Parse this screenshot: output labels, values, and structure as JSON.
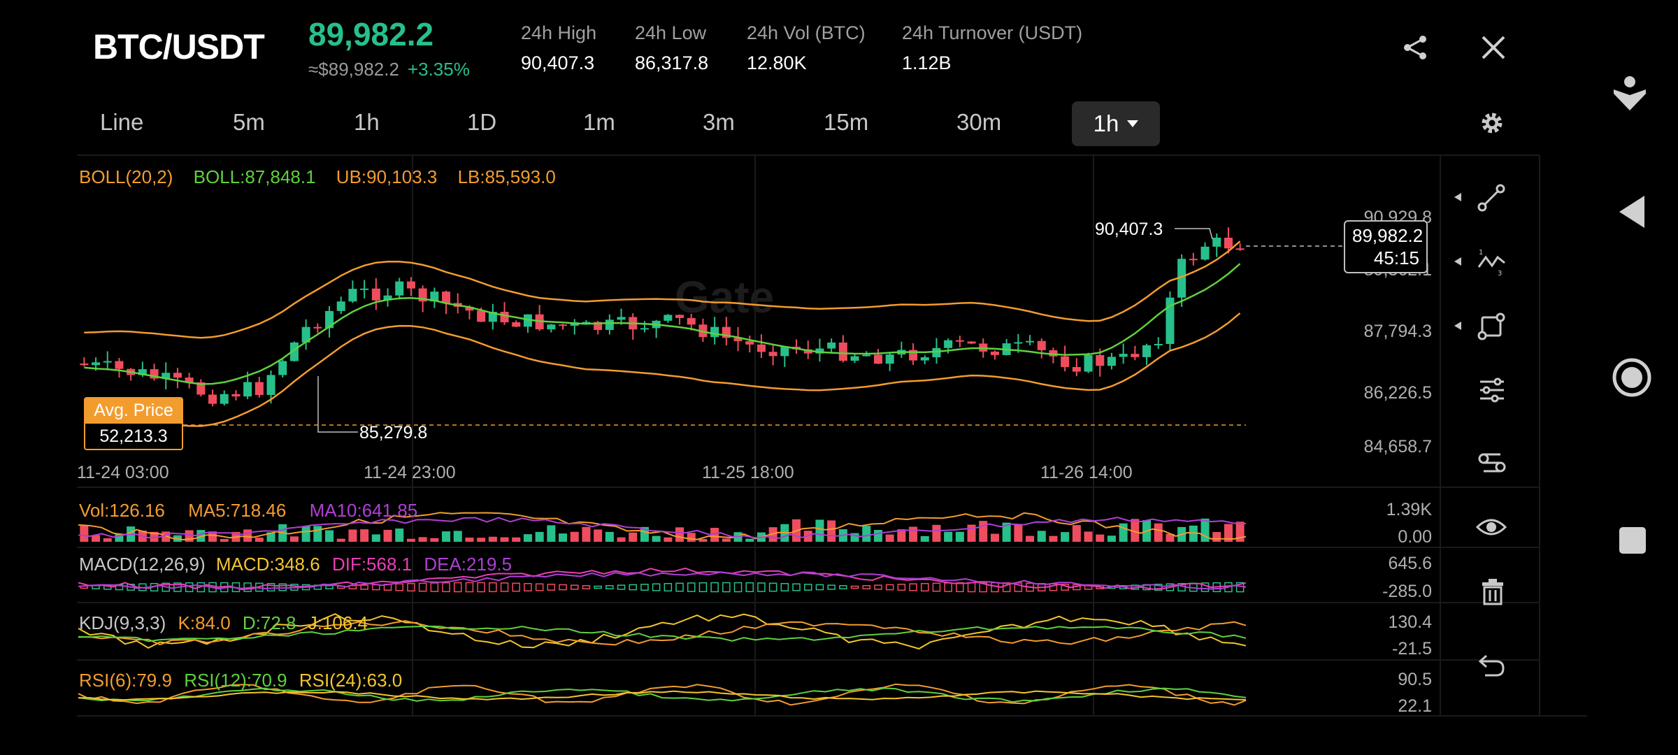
{
  "header": {
    "pair": "BTC/USDT",
    "price": "89,982.2",
    "approx_price": "≈$89,982.2",
    "change": "+3.35%",
    "stats": [
      {
        "label": "24h High",
        "value": "90,407.3"
      },
      {
        "label": "24h Low",
        "value": "86,317.8"
      },
      {
        "label": "24h Vol (BTC)",
        "value": "12.80K"
      },
      {
        "label": "24h Turnover (USDT)",
        "value": "1.12B"
      }
    ]
  },
  "tabs": [
    "Line",
    "5m",
    "1h",
    "1D",
    "1m",
    "3m",
    "15m",
    "30m"
  ],
  "active_tab": "1h",
  "boll": {
    "label": "BOLL(20,2)",
    "mid": "BOLL:87,848.1",
    "ub": "UB:90,103.3",
    "lb": "LB:85,593.0"
  },
  "watermark": "Gate",
  "price_axis": [
    "90,929.8",
    "89,362.1",
    "87,794.3",
    "86,226.5",
    "84,658.7"
  ],
  "time_axis": [
    "11-24 03:00",
    "11-24 23:00",
    "11-25 18:00",
    "11-26 14:00"
  ],
  "high_marker": "90,407.3",
  "low_marker": "85,279.8",
  "last_price_tag": {
    "price": "89,982.2",
    "countdown": "45:15"
  },
  "avg_price": {
    "label": "Avg. Price",
    "value": "52,213.3"
  },
  "volume": {
    "vol": "Vol:126.16",
    "ma5": "MA5:718.46",
    "ma10": "MA10:641.85",
    "axis_top": "1.39K",
    "axis_bottom": "0.00"
  },
  "macd": {
    "label": "MACD(12,26,9)",
    "macd": "MACD:348.6",
    "dif": "DIF:568.1",
    "dea": "DEA:219.5",
    "axis_top": "645.6",
    "axis_bottom": "-285.0"
  },
  "kdj": {
    "label": "KDJ(9,3,3)",
    "k": "K:84.0",
    "d": "D:72.8",
    "j": "J:106.4",
    "axis_top": "130.4",
    "axis_bottom": "-21.5"
  },
  "rsi": {
    "label": "RSI(6):79.9",
    "rsi12": "RSI(12):70.9",
    "rsi24": "RSI(24):63.0",
    "axis_top": "90.5",
    "axis_bottom": "22.1"
  },
  "colors": {
    "up": "#27c08a",
    "down": "#ef4d5e",
    "boll_mid": "#5fd13f",
    "boll_band": "#f39c2e",
    "ma10": "#b03fd6",
    "dif": "#e83fb5",
    "dea": "#b03fd6"
  },
  "toolbar_icons": [
    "trend-line-icon",
    "fib-tool-icon",
    "shape-tool-icon",
    "indicator-settings-icon",
    "layout-icon",
    "visibility-icon",
    "delete-icon",
    "undo-icon"
  ]
}
